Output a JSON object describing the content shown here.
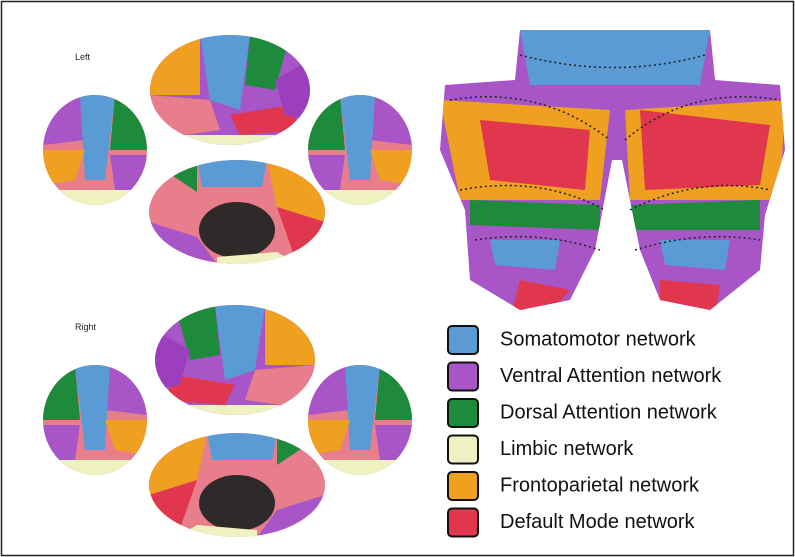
{
  "labels": {
    "left": "Left",
    "right": "Right"
  },
  "legend": {
    "items": [
      {
        "label": "Somatomotor network",
        "color": "#5b9bd5"
      },
      {
        "label": "Ventral Attention network",
        "color": "#a855c7"
      },
      {
        "label": "Dorsal Attention network",
        "color": "#1e8a3c"
      },
      {
        "label": "Limbic network",
        "color": "#eef2c0"
      },
      {
        "label": "Frontoparietal network",
        "color": "#f0a020"
      },
      {
        "label": "Default Mode network",
        "color": "#e0364e"
      }
    ]
  }
}
